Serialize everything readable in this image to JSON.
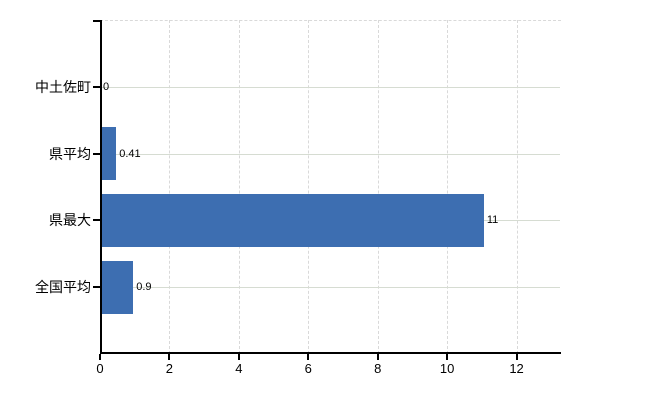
{
  "chart_data": {
    "type": "bar",
    "orientation": "horizontal",
    "title": "",
    "xlabel": "",
    "ylabel": "",
    "categories": [
      "中土佐町",
      "県平均",
      "県最大",
      "全国平均"
    ],
    "values": [
      0,
      0.41,
      11,
      0.9
    ],
    "value_labels": [
      "0",
      "0.41",
      "11",
      "0.9"
    ],
    "x_tick_labels": [
      "0",
      "2",
      "4",
      "6",
      "8",
      "10",
      "12"
    ],
    "x_tick_values": [
      0,
      2,
      4,
      6,
      8,
      10,
      12
    ],
    "xlim": [
      0,
      13.28
    ],
    "grid": true,
    "legend_position": "none",
    "colors": {
      "bar": "#3d6eb1",
      "vertical_grid": "#d9d9d9",
      "horizontal_grid": "#d6dcd2",
      "axis": "#000000",
      "text": "#000000",
      "background": "#ffffff"
    }
  }
}
